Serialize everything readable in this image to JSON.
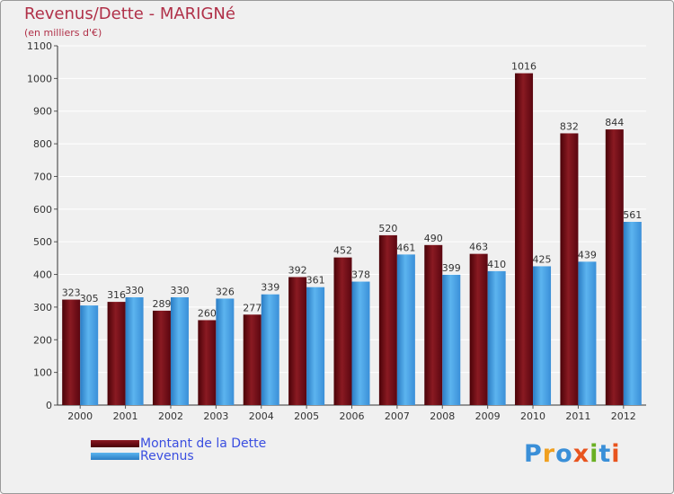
{
  "header": {
    "title": "Revenus/Dette - MARIGNé",
    "subtitle": "(en milliers d'€)"
  },
  "logo": {
    "text": "Proxiti",
    "letters": [
      "P",
      "r",
      "o",
      "x",
      "i",
      "t",
      "i"
    ],
    "colors": [
      "#3a8fd8",
      "#f0a020",
      "#3a8fd8",
      "#e8541e",
      "#6ab023",
      "#3a8fd8",
      "#e8541e"
    ]
  },
  "colors": {
    "debt": "#6b0a12",
    "revenue": "#3a95dd",
    "grid": "#ffffff",
    "plot_background": "#f0f0f0",
    "title": "#b03048",
    "legend_text": "#3a4ee0"
  },
  "chart_data": {
    "type": "bar",
    "title": "Revenus/Dette - MARIGNé",
    "subtitle": "(en milliers d'€)",
    "categories": [
      "2000",
      "2001",
      "2002",
      "2003",
      "2004",
      "2005",
      "2006",
      "2007",
      "2008",
      "2009",
      "2010",
      "2011",
      "2012"
    ],
    "series": [
      {
        "name": "Montant de la Dette",
        "color": "#6b0a12",
        "values": [
          323,
          316,
          289,
          260,
          277,
          392,
          452,
          520,
          490,
          463,
          1016,
          832,
          844
        ]
      },
      {
        "name": "Revenus",
        "color": "#3a95dd",
        "values": [
          305,
          330,
          330,
          326,
          339,
          361,
          378,
          461,
          399,
          410,
          425,
          439,
          561
        ]
      }
    ],
    "ylim": [
      0,
      1100
    ],
    "yticks": [
      0,
      100,
      200,
      300,
      400,
      500,
      600,
      700,
      800,
      900,
      1000,
      1100
    ],
    "grid": true,
    "legend_position": "bottom-left",
    "data_labels": true
  }
}
